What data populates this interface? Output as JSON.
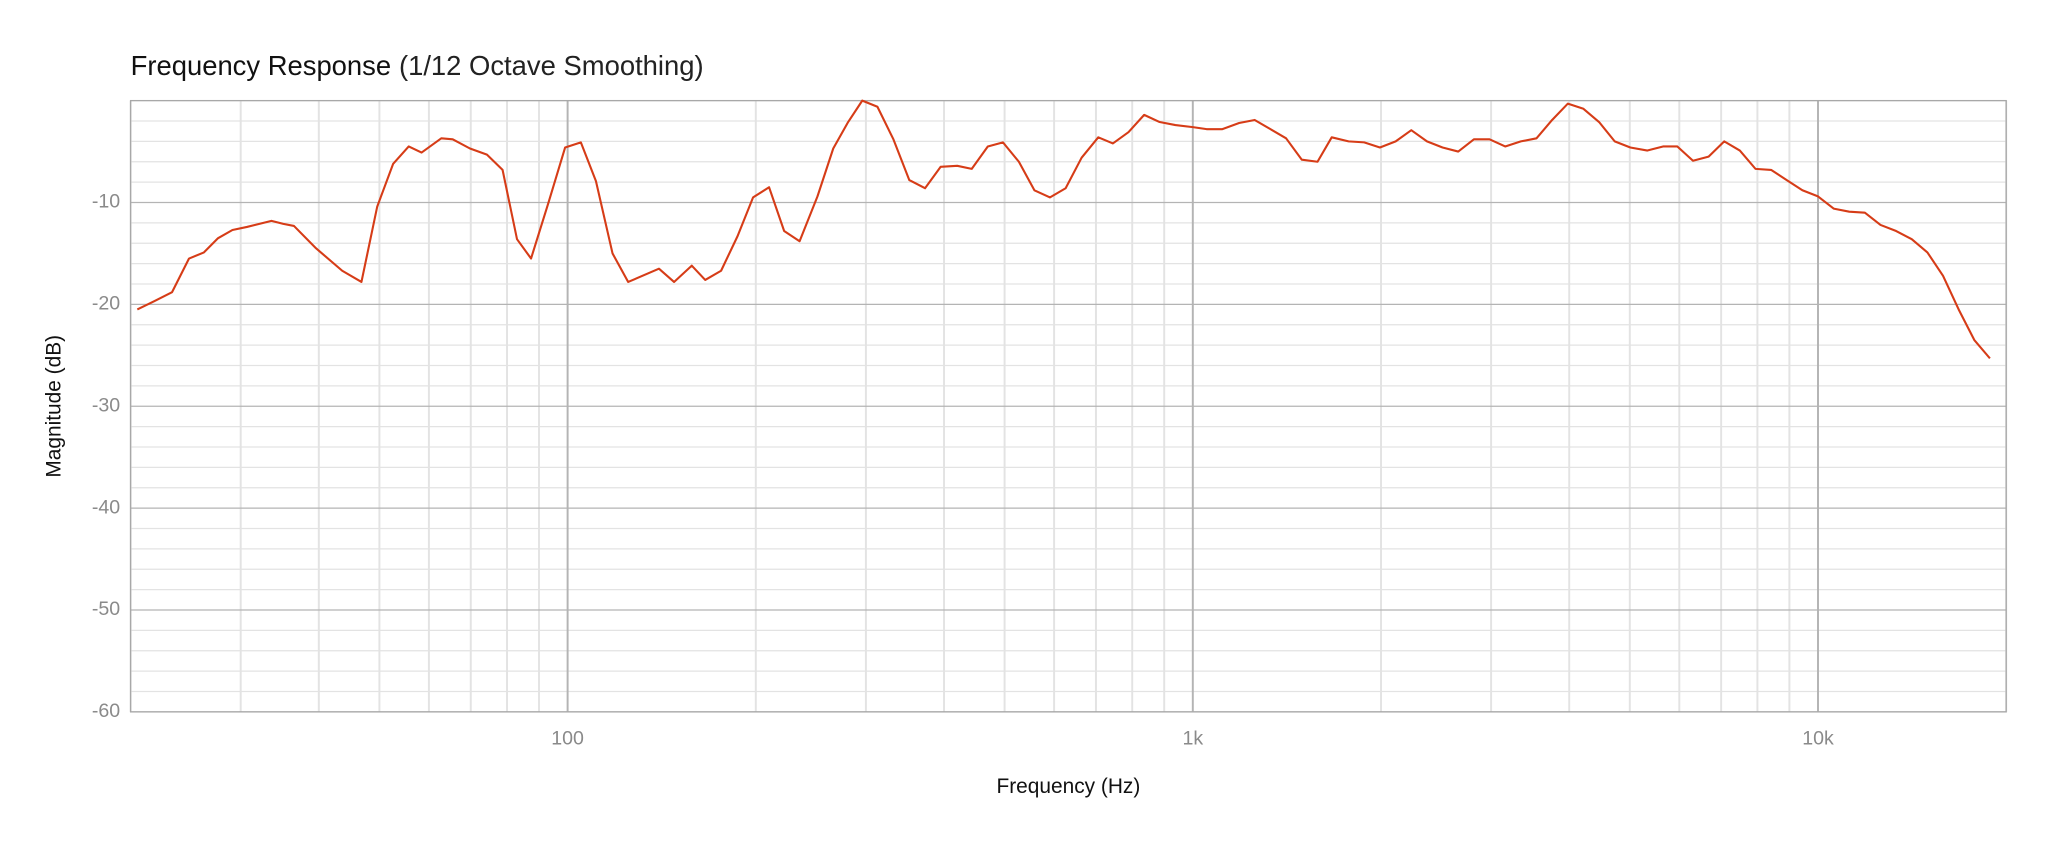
{
  "chart_data": {
    "type": "line",
    "title": "Frequency Response",
    "subtitle": "(1/12 Octave Smoothing)",
    "x_label": "Frequency (Hz)",
    "y_label": "Magnitude (dB)",
    "x_scale": "log",
    "grid": true,
    "xlim": [
      20,
      20000
    ],
    "ylim": [
      -60,
      0
    ],
    "xticks": [
      100,
      {
        "value": 1000,
        "label": "1k"
      },
      {
        "value": 10000,
        "label": "10k"
      }
    ],
    "yticks": [
      -60,
      -50,
      -40,
      -30,
      -20,
      -10
    ],
    "x_minor": [
      20,
      30,
      40,
      50,
      60,
      70,
      80,
      90,
      200,
      300,
      400,
      500,
      600,
      700,
      800,
      900,
      2000,
      3000,
      4000,
      5000,
      6000,
      7000,
      8000,
      9000,
      20000
    ],
    "y_minor": [
      -58,
      -56,
      -54,
      -52,
      -48,
      -46,
      -44,
      -42,
      -38,
      -36,
      -34,
      -32,
      -28,
      -26,
      -24,
      -22,
      -18,
      -16,
      -14,
      -12,
      -8,
      -6,
      -4,
      -2,
      0
    ],
    "series": [
      {
        "name": "Magnitude",
        "color": "#d63c17",
        "x": [
          20.5,
          21.8,
          23.3,
          24.8,
          26.2,
          27.6,
          29.1,
          30.7,
          33.6,
          35.1,
          36.5,
          39.6,
          43.6,
          46.8,
          49.6,
          52.6,
          55.7,
          58.4,
          62.8,
          65.5,
          69.8,
          74.3,
          78.7,
          83,
          87.4,
          93.1,
          99.1,
          105,
          111,
          118,
          125,
          140,
          148,
          158,
          166,
          176,
          187,
          198,
          210,
          222,
          235,
          251,
          266,
          281,
          296,
          313,
          332,
          352,
          373,
          395,
          420,
          443,
          470,
          497,
          527,
          558,
          591,
          626,
          664,
          706,
          745,
          789,
          836,
          885,
          938,
          1000,
          1052,
          1115,
          1186,
          1256,
          1331,
          1410,
          1494,
          1583,
          1668,
          1775,
          1880,
          1992,
          2111,
          2236,
          2369,
          2509,
          2658,
          2816,
          2983,
          3160,
          3347,
          3546,
          3756,
          3979,
          4215,
          4465,
          4730,
          5010,
          5335,
          5651,
          5957,
          6310,
          6684,
          7080,
          7499,
          7944,
          8414,
          8913,
          9441,
          10000,
          10593,
          11220,
          11885,
          12589,
          13335,
          14125,
          14962,
          15849,
          16788,
          17783,
          18836
        ],
        "values": [
          -20.5,
          -19.7,
          -18.8,
          -15.5,
          -14.9,
          -13.5,
          -12.7,
          -12.4,
          -11.8,
          -12.1,
          -12.3,
          -14.5,
          -16.7,
          -17.8,
          -10.4,
          -6.2,
          -4.5,
          -5.1,
          -3.7,
          -3.8,
          -4.7,
          -5.3,
          -6.8,
          -13.6,
          -15.5,
          -10.1,
          -4.6,
          -4.1,
          -7.9,
          -15,
          -17.8,
          -16.5,
          -17.8,
          -16.2,
          -17.6,
          -16.7,
          -13.3,
          -9.5,
          -8.5,
          -12.8,
          -13.8,
          -9.4,
          -4.7,
          -2.1,
          0,
          -0.6,
          -3.8,
          -7.8,
          -8.6,
          -6.5,
          -6.4,
          -6.7,
          -4.5,
          -4.1,
          -6,
          -8.8,
          -9.5,
          -8.6,
          -5.6,
          -3.6,
          -4.2,
          -3.1,
          -1.4,
          -2.1,
          -2.4,
          -2.6,
          -2.8,
          -2.8,
          -2.2,
          -1.9,
          -2.8,
          -3.7,
          -5.8,
          -6,
          -3.6,
          -4,
          -4.1,
          -4.6,
          -4,
          -2.9,
          -4,
          -4.6,
          -5,
          -3.8,
          -3.8,
          -4.5,
          -4,
          -3.7,
          -1.9,
          -0.3,
          -0.8,
          -2.1,
          -4,
          -4.6,
          -4.9,
          -4.5,
          -4.5,
          -5.9,
          -5.5,
          -4,
          -4.9,
          -6.7,
          -6.8,
          -7.8,
          -8.8,
          -9.4,
          -10.6,
          -10.9,
          -11,
          -12.2,
          -12.8,
          -13.6,
          -14.9,
          -17.2,
          -20.5,
          -23.5,
          -25.3
        ]
      }
    ]
  }
}
